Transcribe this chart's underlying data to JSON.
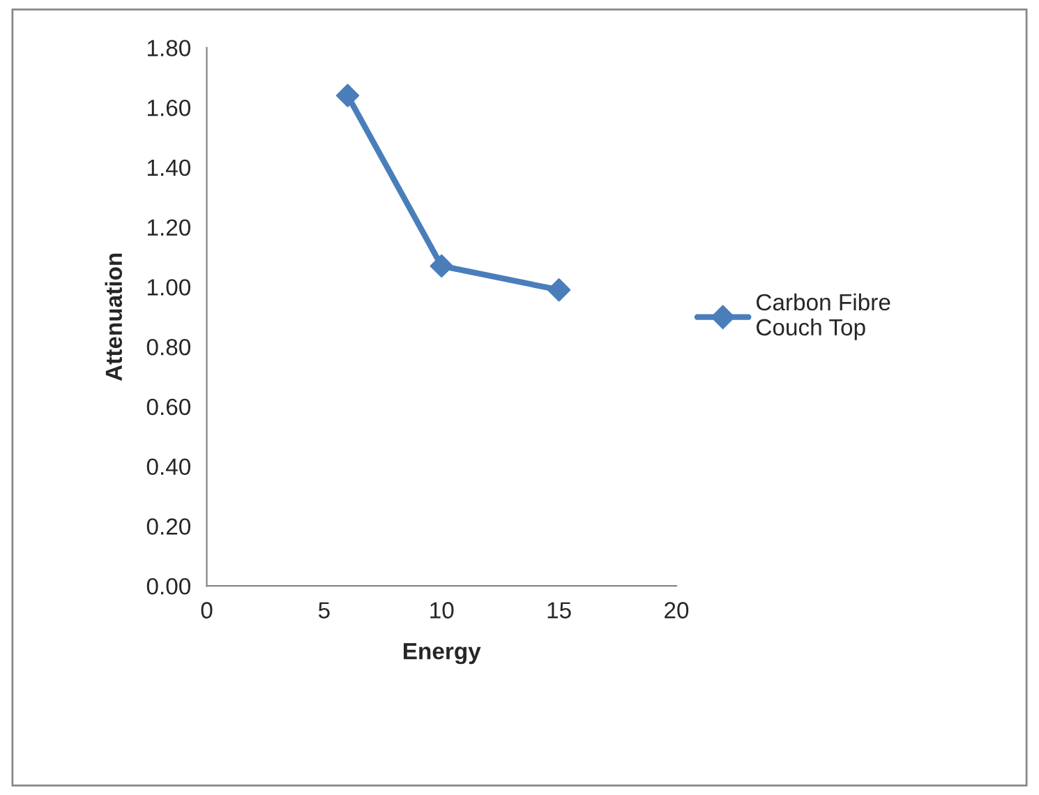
{
  "chart_data": {
    "type": "line",
    "xlabel": "Energy",
    "ylabel": "Attenuation",
    "x": [
      6,
      10,
      15
    ],
    "series": [
      {
        "name": "Carbon Fibre Couch Top",
        "color": "#4a7ebb",
        "values": [
          1.64,
          1.07,
          0.99
        ]
      }
    ],
    "xlim": [
      0,
      20
    ],
    "xticks": [
      0,
      5,
      10,
      15,
      20
    ],
    "ylim": [
      0,
      1.8
    ],
    "yticks": [
      {
        "value": 0,
        "label": "0.00"
      },
      {
        "value": 0.2,
        "label": "0.20"
      },
      {
        "value": 0.4,
        "label": "0.40"
      },
      {
        "value": 0.6,
        "label": "0.60"
      },
      {
        "value": 0.8,
        "label": "0.80"
      },
      {
        "value": 1.0,
        "label": "1.00"
      },
      {
        "value": 1.2,
        "label": "1.20"
      },
      {
        "value": 1.4,
        "label": "1.40"
      },
      {
        "value": 1.6,
        "label": "1.60"
      },
      {
        "value": 1.8,
        "label": "1.80"
      }
    ],
    "marker": "diamond",
    "line_style": "solid",
    "grid": false,
    "legend": "right"
  }
}
